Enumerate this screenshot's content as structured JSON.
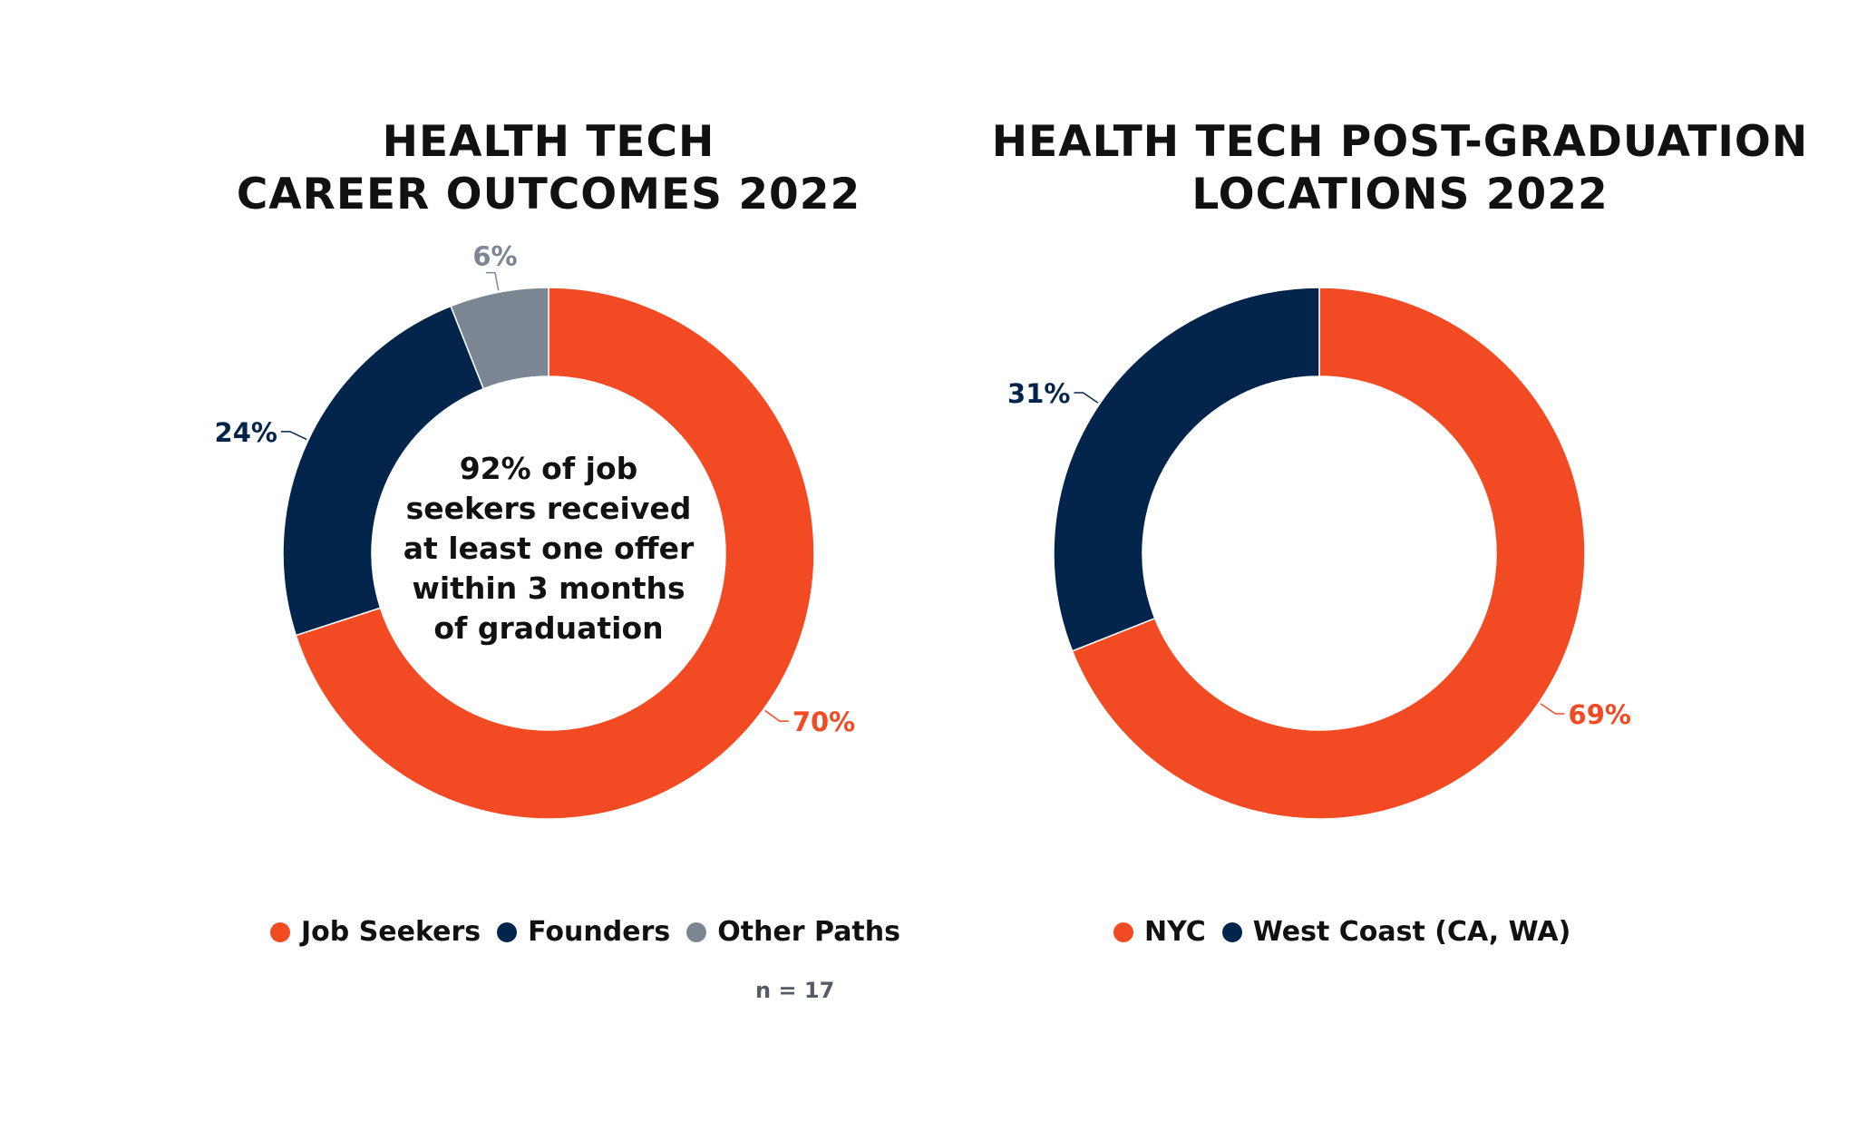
{
  "colors": {
    "orange": "#f24a22",
    "navy": "#03254c",
    "gray": "#7b8692"
  },
  "chart_data": [
    {
      "type": "pie",
      "title": [
        "HEALTH TECH",
        "CAREER OUTCOMES 2022"
      ],
      "center_text": [
        "92% of job",
        "seekers received",
        "at least one offer",
        "within 3 months",
        "of graduation"
      ],
      "categories": [
        "Job Seekers",
        "Founders",
        "Other Paths"
      ],
      "values": [
        70,
        24,
        6
      ],
      "data_labels": [
        "70%",
        "24%",
        "6%"
      ],
      "colors": [
        "#f24a22",
        "#03254c",
        "#7b8692"
      ],
      "donut": true,
      "legend": "bottom",
      "note": "n = 17"
    },
    {
      "type": "pie",
      "title": [
        "HEALTH TECH POST-GRADUATION",
        "LOCATIONS 2022"
      ],
      "categories": [
        "NYC",
        "West Coast (CA, WA)"
      ],
      "values": [
        69,
        31
      ],
      "data_labels": [
        "69%",
        "31%"
      ],
      "colors": [
        "#f24a22",
        "#03254c"
      ],
      "donut": true,
      "legend": "bottom"
    }
  ]
}
